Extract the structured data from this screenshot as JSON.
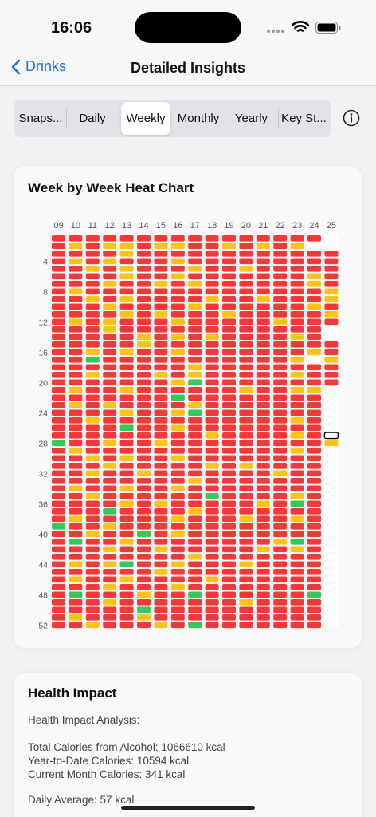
{
  "status_bar": {
    "time": "16:06"
  },
  "nav": {
    "back_label": "Drinks",
    "title": "Detailed Insights"
  },
  "segments": [
    {
      "label": "Snaps...",
      "active": false
    },
    {
      "label": "Daily",
      "active": false
    },
    {
      "label": "Weekly",
      "active": true
    },
    {
      "label": "Monthly",
      "active": false
    },
    {
      "label": "Yearly",
      "active": false
    },
    {
      "label": "Key St...",
      "active": false
    }
  ],
  "colors": {
    "red": "#f03a3a",
    "yellow": "#fcc419",
    "green": "#34c759",
    "empty": "#ffffff",
    "accent": "#1a73e8"
  },
  "chart_data": {
    "type": "heatmap",
    "title": "Week by Week Heat Chart",
    "columns": [
      "09",
      "10",
      "11",
      "12",
      "13",
      "14",
      "15",
      "16",
      "17",
      "18",
      "19",
      "20",
      "21",
      "22",
      "23",
      "24",
      "25"
    ],
    "row_labels": {
      "4": "4",
      "8": "8",
      "12": "12",
      "16": "16",
      "20": "20",
      "24": "24",
      "28": "28",
      "32": "32",
      "36": "36",
      "40": "40",
      "44": "44",
      "48": "48",
      "52": "52"
    },
    "legend": {
      "R": "red",
      "Y": "yellow",
      "G": "green",
      "E": "empty"
    },
    "highlight": {
      "column": "25",
      "row": 27
    },
    "rows": [
      "RRRRRRRRRRRRRRRRE",
      "RYRYYRYYRRYRYRYEE",
      "RRRRYRRRRRRRRRRRR",
      "RYRYRRRYRRRRRRRRR",
      "RRYRYRRRYRRYRRRRR",
      "RRRRYRRYRRRRRRRYR",
      "RRRYRRYRYRRRRRRYR",
      "RYRRRRRRRRRRRRRRY",
      "RRYRYRRRRYRRYRRRY",
      "RRRYRRRRYRRRRRRYR",
      "RRRRYRYRRRYRRRRRY",
      "RYRYRRRYRRRRRYRRR",
      "RRRYRRRRRRRRRRRRE",
      "RRRRRYRYRYRRRRYRE",
      "RRRRRYRRRRRRRRRRR",
      "RRYRYRRYRRRRRRRYR",
      "RRGRRRRRRRRRRRYEY",
      "RRRRRRRRYRRRRRRRR",
      "RRYRRRYRYRRRRRYRR",
      "RRRRRRRYGRRRRRRRR",
      "RYRRYRRRRRRYRRYYE",
      "RRRRRRRGRRRRRRRRE",
      "RYRYRRRRYRRRRRRRE",
      "RRRRYRRYGRRRRRRRE",
      "RRYRRRRRRRRRRRYRE",
      "RRRRGRRYRRRRRRRRE",
      "RRRRRRRRRYRRRRYRE",
      "GRRYRRYRRRRRRRRRY",
      "RYRRRRRRRRRRRRYRE",
      "RRYRYRRYRRRRRRRRE",
      "RRRYRRRRRYRYRRRRE",
      "RRYRRYRRRRRRRYRRE",
      "RRRRRRRRYRRRRRRRE",
      "RYRRYRRYRRRRRRRRE",
      "RRYRRRRRRGRRRRYRE",
      "RRRRYRYRRRRRYRGRE",
      "RRRGRRRRYRRRRRRRE",
      "RYRRRRRYRRRYRRYRE",
      "GRRYRRRRRRRRRRRRE",
      "RRYRRGRYRRRRRRRRE",
      "RGRRYRRRRRRRRYGRE",
      "RRRYRRYRRRRRYRYRE",
      "RRRRRRRRYRRRRRRRE",
      "RYRYGRRYRRRYRRRRE",
      "RRRRRRYRRRRRRRRRE",
      "RYRRYRRRRYRRRRRRE",
      "RRRYRRRYRRRRRRRRE",
      "RGRRRYRRGRRRRRRGE",
      "RRRYRRRRRRRYRRRRE",
      "RRRRRGRRRRRRRRRRE",
      "RYRRRYRRRRRRRRRRE",
      "RRYRRRYRGRRRRRRRE"
    ]
  },
  "health": {
    "title": "Health Impact",
    "lines": [
      "Health Impact Analysis:",
      "Total Calories from Alcohol: 1066610 kcal",
      "Year-to-Date Calories: 10594 kcal",
      "Current Month Calories: 341 kcal",
      "Daily Average: 57 kcal"
    ]
  }
}
